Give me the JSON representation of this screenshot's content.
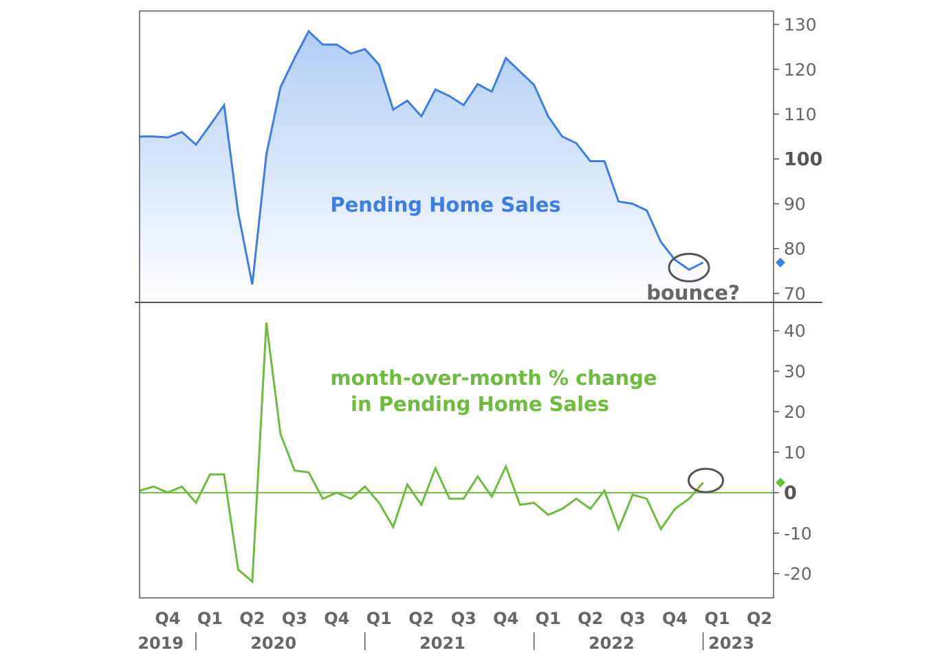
{
  "chart_data": [
    {
      "type": "area",
      "title": "Pending Home Sales",
      "ylim": [
        68,
        133
      ],
      "y_ticks": [
        "70",
        "80",
        "90",
        "100",
        "110",
        "120",
        "130"
      ],
      "y_ticks_bold": [
        "100"
      ],
      "x_start": "2019-09",
      "x_end": "2023-06",
      "values": [
        105,
        105,
        104.8,
        106,
        103.2,
        107.5,
        112,
        88,
        72,
        101,
        116,
        122.5,
        128.5,
        125.5,
        125.5,
        123.5,
        124.5,
        121,
        111,
        113,
        109.5,
        115.5,
        114,
        112,
        116.7,
        115,
        122.5,
        119.5,
        116.5,
        109.5,
        105,
        103.5,
        99.5,
        99.5,
        90.5,
        90,
        88.5,
        81.5,
        77.5,
        75.3,
        76.9
      ],
      "series": [
        {
          "name": "Pending Home Sales",
          "color": "#3d7de6",
          "fill_top": "#b8d4f7",
          "fill_bottom": "#ffffff"
        }
      ],
      "last_value_marker": 76.9,
      "annotation": "bounce?",
      "annotation_target_index": 39
    },
    {
      "type": "line",
      "title": "month-over-month % change\nin Pending Home Sales",
      "title_lines": [
        "month-over-month % change",
        "in Pending Home Sales"
      ],
      "ylim": [
        -26,
        47
      ],
      "y_ticks": [
        "-20",
        "-10",
        "0",
        "10",
        "20",
        "30",
        "40"
      ],
      "y_ticks_bold": [
        "0"
      ],
      "x_start": "2019-09",
      "x_end": "2023-06",
      "zero_line": true,
      "values": [
        0.5,
        1.5,
        0,
        1.5,
        -2.5,
        4.5,
        4.5,
        -19,
        -22,
        42,
        14.5,
        5.5,
        5,
        -1.5,
        0,
        -1.5,
        1.5,
        -2.5,
        -8.5,
        2,
        -3,
        6,
        -1.5,
        -1.5,
        4,
        -1,
        6.5,
        -3,
        -2.5,
        -5.5,
        -4,
        -1.5,
        -4,
        0.5,
        -9,
        -0.5,
        -1.5,
        -9,
        -4,
        -1.5,
        2.5
      ],
      "series": [
        {
          "name": "month-over-month % change in Pending Home Sales",
          "color": "#6cbd3c"
        }
      ],
      "last_value_marker": 2.5,
      "circle_target_index": 40
    }
  ],
  "x_axis": {
    "quarters": [
      {
        "label": "Q4",
        "date": "2019-11"
      },
      {
        "label": "Q1",
        "date": "2020-02"
      },
      {
        "label": "Q2",
        "date": "2020-05"
      },
      {
        "label": "Q3",
        "date": "2020-08"
      },
      {
        "label": "Q4",
        "date": "2020-11"
      },
      {
        "label": "Q1",
        "date": "2021-02"
      },
      {
        "label": "Q2",
        "date": "2021-05"
      },
      {
        "label": "Q3",
        "date": "2021-08"
      },
      {
        "label": "Q4",
        "date": "2021-11"
      },
      {
        "label": "Q1",
        "date": "2022-02"
      },
      {
        "label": "Q2",
        "date": "2022-05"
      },
      {
        "label": "Q3",
        "date": "2022-08"
      },
      {
        "label": "Q4",
        "date": "2022-11"
      },
      {
        "label": "Q1",
        "date": "2023-02"
      },
      {
        "label": "Q2",
        "date": "2023-05"
      }
    ],
    "years": [
      {
        "label": "2019",
        "date": "2019-10.5"
      },
      {
        "label": "2020",
        "date": "2020-06.5"
      },
      {
        "label": "2021",
        "date": "2021-06.5"
      },
      {
        "label": "2022",
        "date": "2022-06.5"
      },
      {
        "label": "2023",
        "date": "2023-03"
      }
    ],
    "year_dividers": [
      "2020-01",
      "2021-01",
      "2022-01",
      "2023-01"
    ]
  },
  "colors": {
    "blue": "#3d7de6",
    "green": "#6cbd3c",
    "axis": "#555555",
    "circle": "#555555"
  }
}
